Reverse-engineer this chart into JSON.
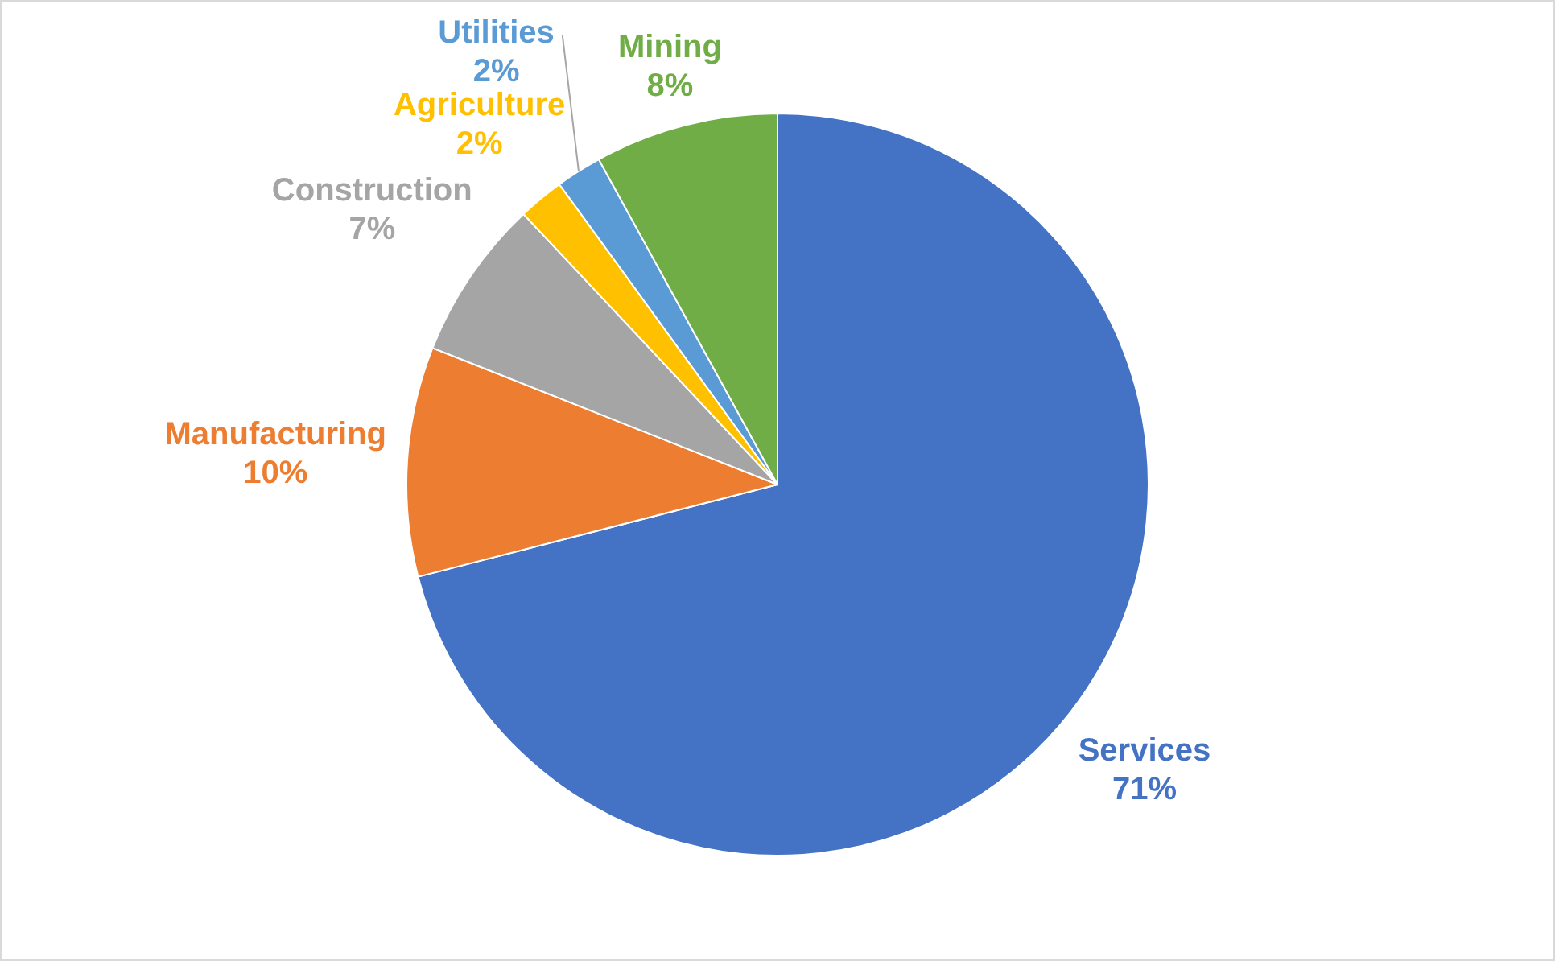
{
  "chart_data": {
    "type": "pie",
    "categories": [
      "Services",
      "Manufacturing",
      "Construction",
      "Agriculture",
      "Utilities",
      "Mining"
    ],
    "values": [
      71,
      10,
      7,
      2,
      2,
      8
    ],
    "colors": [
      "#4472c4",
      "#ed7d31",
      "#a5a5a5",
      "#ffc000",
      "#5b9bd5",
      "#70ad47"
    ],
    "value_labels": [
      "71%",
      "10%",
      "7%",
      "2%",
      "2%",
      "8%"
    ],
    "legend": false
  }
}
